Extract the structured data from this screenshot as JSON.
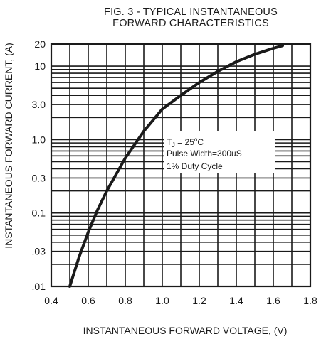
{
  "chart_data": {
    "type": "line",
    "title_line1": "FIG. 3 - TYPICAL INSTANTANEOUS",
    "title_line2": "FORWARD CHARACTERISTICS",
    "xlabel": "INSTANTANEOUS FORWARD VOLTAGE, (V)",
    "ylabel": "INSTANTANEOUS FORWARD CURRENT, (A)",
    "xlim": [
      0.4,
      1.8
    ],
    "ylim": [
      0.01,
      20
    ],
    "y_scale": "log",
    "grid": true,
    "x_ticks": [
      0.4,
      0.6,
      0.8,
      1.0,
      1.2,
      1.4,
      1.6,
      1.8
    ],
    "x_tick_labels": [
      "0.4",
      "0.6",
      "0.8",
      "1.0",
      "1.2",
      "1.4",
      "1.6",
      "1.8"
    ],
    "y_ticks": [
      0.01,
      0.03,
      0.1,
      0.3,
      1.0,
      3.0,
      10,
      20
    ],
    "y_tick_labels": [
      ".01",
      ".03",
      "0.1",
      "0.3",
      "1.0",
      "3.0",
      "10",
      "20"
    ],
    "series": [
      {
        "x": [
          0.5,
          0.55,
          0.6,
          0.65,
          0.7,
          0.8,
          0.9,
          1.0,
          1.1,
          1.2,
          1.3,
          1.4,
          1.5,
          1.6,
          1.65
        ],
        "y": [
          0.01,
          0.025,
          0.055,
          0.11,
          0.2,
          0.56,
          1.3,
          2.6,
          4.0,
          6.0,
          8.5,
          11.5,
          14.5,
          17.5,
          19.0
        ]
      }
    ],
    "annotation": {
      "tj_prefix": "T",
      "tj_sub": "J",
      "tj_eq": " = 25",
      "tj_sup": "o",
      "tj_unit": "C",
      "pulse": "Pulse Width=300uS",
      "duty": "1% Duty Cycle",
      "position": "center-right"
    }
  }
}
